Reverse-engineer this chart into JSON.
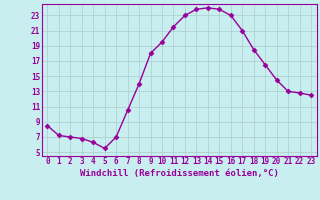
{
  "x": [
    0,
    1,
    2,
    3,
    4,
    5,
    6,
    7,
    8,
    9,
    10,
    11,
    12,
    13,
    14,
    15,
    16,
    17,
    18,
    19,
    20,
    21,
    22,
    23
  ],
  "y": [
    8.5,
    7.2,
    7.0,
    6.8,
    6.3,
    5.5,
    7.0,
    10.5,
    14.0,
    18.0,
    19.5,
    21.5,
    23.0,
    23.8,
    24.0,
    23.8,
    23.0,
    21.0,
    18.5,
    16.5,
    14.5,
    13.0,
    12.8,
    12.5
  ],
  "line_color": "#990099",
  "marker": "D",
  "marker_size": 2.5,
  "bg_color": "#c8eef0",
  "grid_color": "#aacccc",
  "xlabel": "Windchill (Refroidissement éolien,°C)",
  "xlabel_fontsize": 6.5,
  "xlim": [
    -0.5,
    23.5
  ],
  "ylim": [
    4.5,
    24.5
  ],
  "yticks": [
    5,
    7,
    9,
    11,
    13,
    15,
    17,
    19,
    21,
    23
  ],
  "xticks": [
    0,
    1,
    2,
    3,
    4,
    5,
    6,
    7,
    8,
    9,
    10,
    11,
    12,
    13,
    14,
    15,
    16,
    17,
    18,
    19,
    20,
    21,
    22,
    23
  ],
  "tick_fontsize": 5.5,
  "line_width": 1.0
}
